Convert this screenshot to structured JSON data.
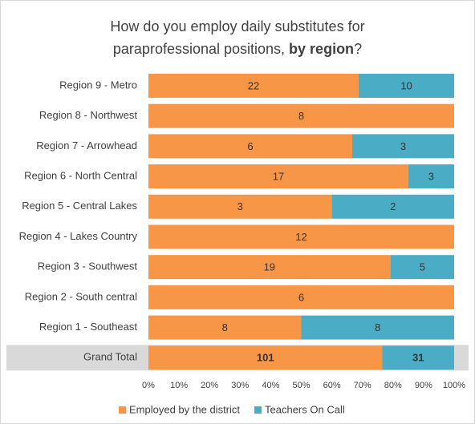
{
  "chart_data": {
    "type": "bar",
    "orientation": "horizontal",
    "stacked": "percent",
    "title": [
      "How do you employ daily substitutes for",
      "paraprofessional positions, ",
      "by region",
      "?"
    ],
    "categories": [
      "Region 9 - Metro",
      "Region 8 - Northwest",
      "Region 7 - Arrowhead",
      "Region 6 - North Central",
      "Region 5 - Central Lakes",
      "Region 4 - Lakes Country",
      "Region 3 - Southwest",
      "Region 2 - South central",
      "Region 1 - Southeast",
      "Grand Total"
    ],
    "highlight": "Grand Total",
    "series": [
      {
        "name": "Employed by the district",
        "color": "#f79646",
        "values": [
          22,
          8,
          6,
          17,
          3,
          12,
          19,
          6,
          8,
          101
        ]
      },
      {
        "name": "Teachers On Call",
        "color": "#4bacc6",
        "values": [
          10,
          null,
          3,
          3,
          2,
          null,
          5,
          null,
          8,
          31
        ]
      }
    ],
    "xlim": [
      0,
      100
    ],
    "xticks": [
      {
        "value": 0,
        "label": "0%"
      },
      {
        "value": 10,
        "label": "10%"
      },
      {
        "value": 20,
        "label": "20%"
      },
      {
        "value": 30,
        "label": "30%"
      },
      {
        "value": 40,
        "label": "40%"
      },
      {
        "value": 50,
        "label": "50%"
      },
      {
        "value": 60,
        "label": "60%"
      },
      {
        "value": 70,
        "label": "70%"
      },
      {
        "value": 80,
        "label": "80%"
      },
      {
        "value": 90,
        "label": "90%"
      },
      {
        "value": 100,
        "label": "100%"
      }
    ],
    "grid": false,
    "legend": "bottom"
  }
}
